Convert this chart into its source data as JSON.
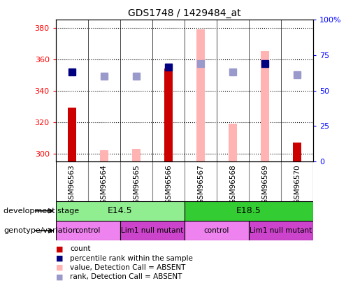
{
  "title": "GDS1748 / 1429484_at",
  "samples": [
    "GSM96563",
    "GSM96564",
    "GSM96565",
    "GSM96566",
    "GSM96567",
    "GSM96568",
    "GSM96569",
    "GSM96570"
  ],
  "ylim_left": [
    295,
    385
  ],
  "ylim_right": [
    0,
    100
  ],
  "yticks_left": [
    300,
    320,
    340,
    360,
    380
  ],
  "yticks_right": [
    0,
    25,
    50,
    75,
    100
  ],
  "count_values": [
    329,
    null,
    null,
    354,
    null,
    null,
    null,
    307
  ],
  "count_absent_values": [
    null,
    302,
    303,
    null,
    379,
    319,
    365,
    null
  ],
  "rank_present_values": [
    352,
    null,
    null,
    355,
    null,
    null,
    357,
    null
  ],
  "rank_absent_values": [
    null,
    349,
    349,
    null,
    357,
    352,
    null,
    350
  ],
  "count_color": "#cc0000",
  "count_absent_color": "#ffb3b3",
  "rank_present_color": "#000080",
  "rank_absent_color": "#9999cc",
  "dev_stages": [
    {
      "label": "E14.5",
      "start": 0,
      "end": 4,
      "color": "#90ee90"
    },
    {
      "label": "E18.5",
      "start": 4,
      "end": 8,
      "color": "#33cc33"
    }
  ],
  "genotype_groups": [
    {
      "label": "control",
      "start": 0,
      "end": 2,
      "color": "#ee82ee"
    },
    {
      "label": "Lim1 null mutant",
      "start": 2,
      "end": 4,
      "color": "#cc44cc"
    },
    {
      "label": "control",
      "start": 4,
      "end": 6,
      "color": "#ee82ee"
    },
    {
      "label": "Lim1 null mutant",
      "start": 6,
      "end": 8,
      "color": "#cc44cc"
    }
  ],
  "background_color": "#ffffff",
  "xticklabel_bg": "#d0d0d0",
  "bar_width": 0.5,
  "marker_size": 7,
  "tick_fontsize": 8,
  "label_fontsize": 9
}
